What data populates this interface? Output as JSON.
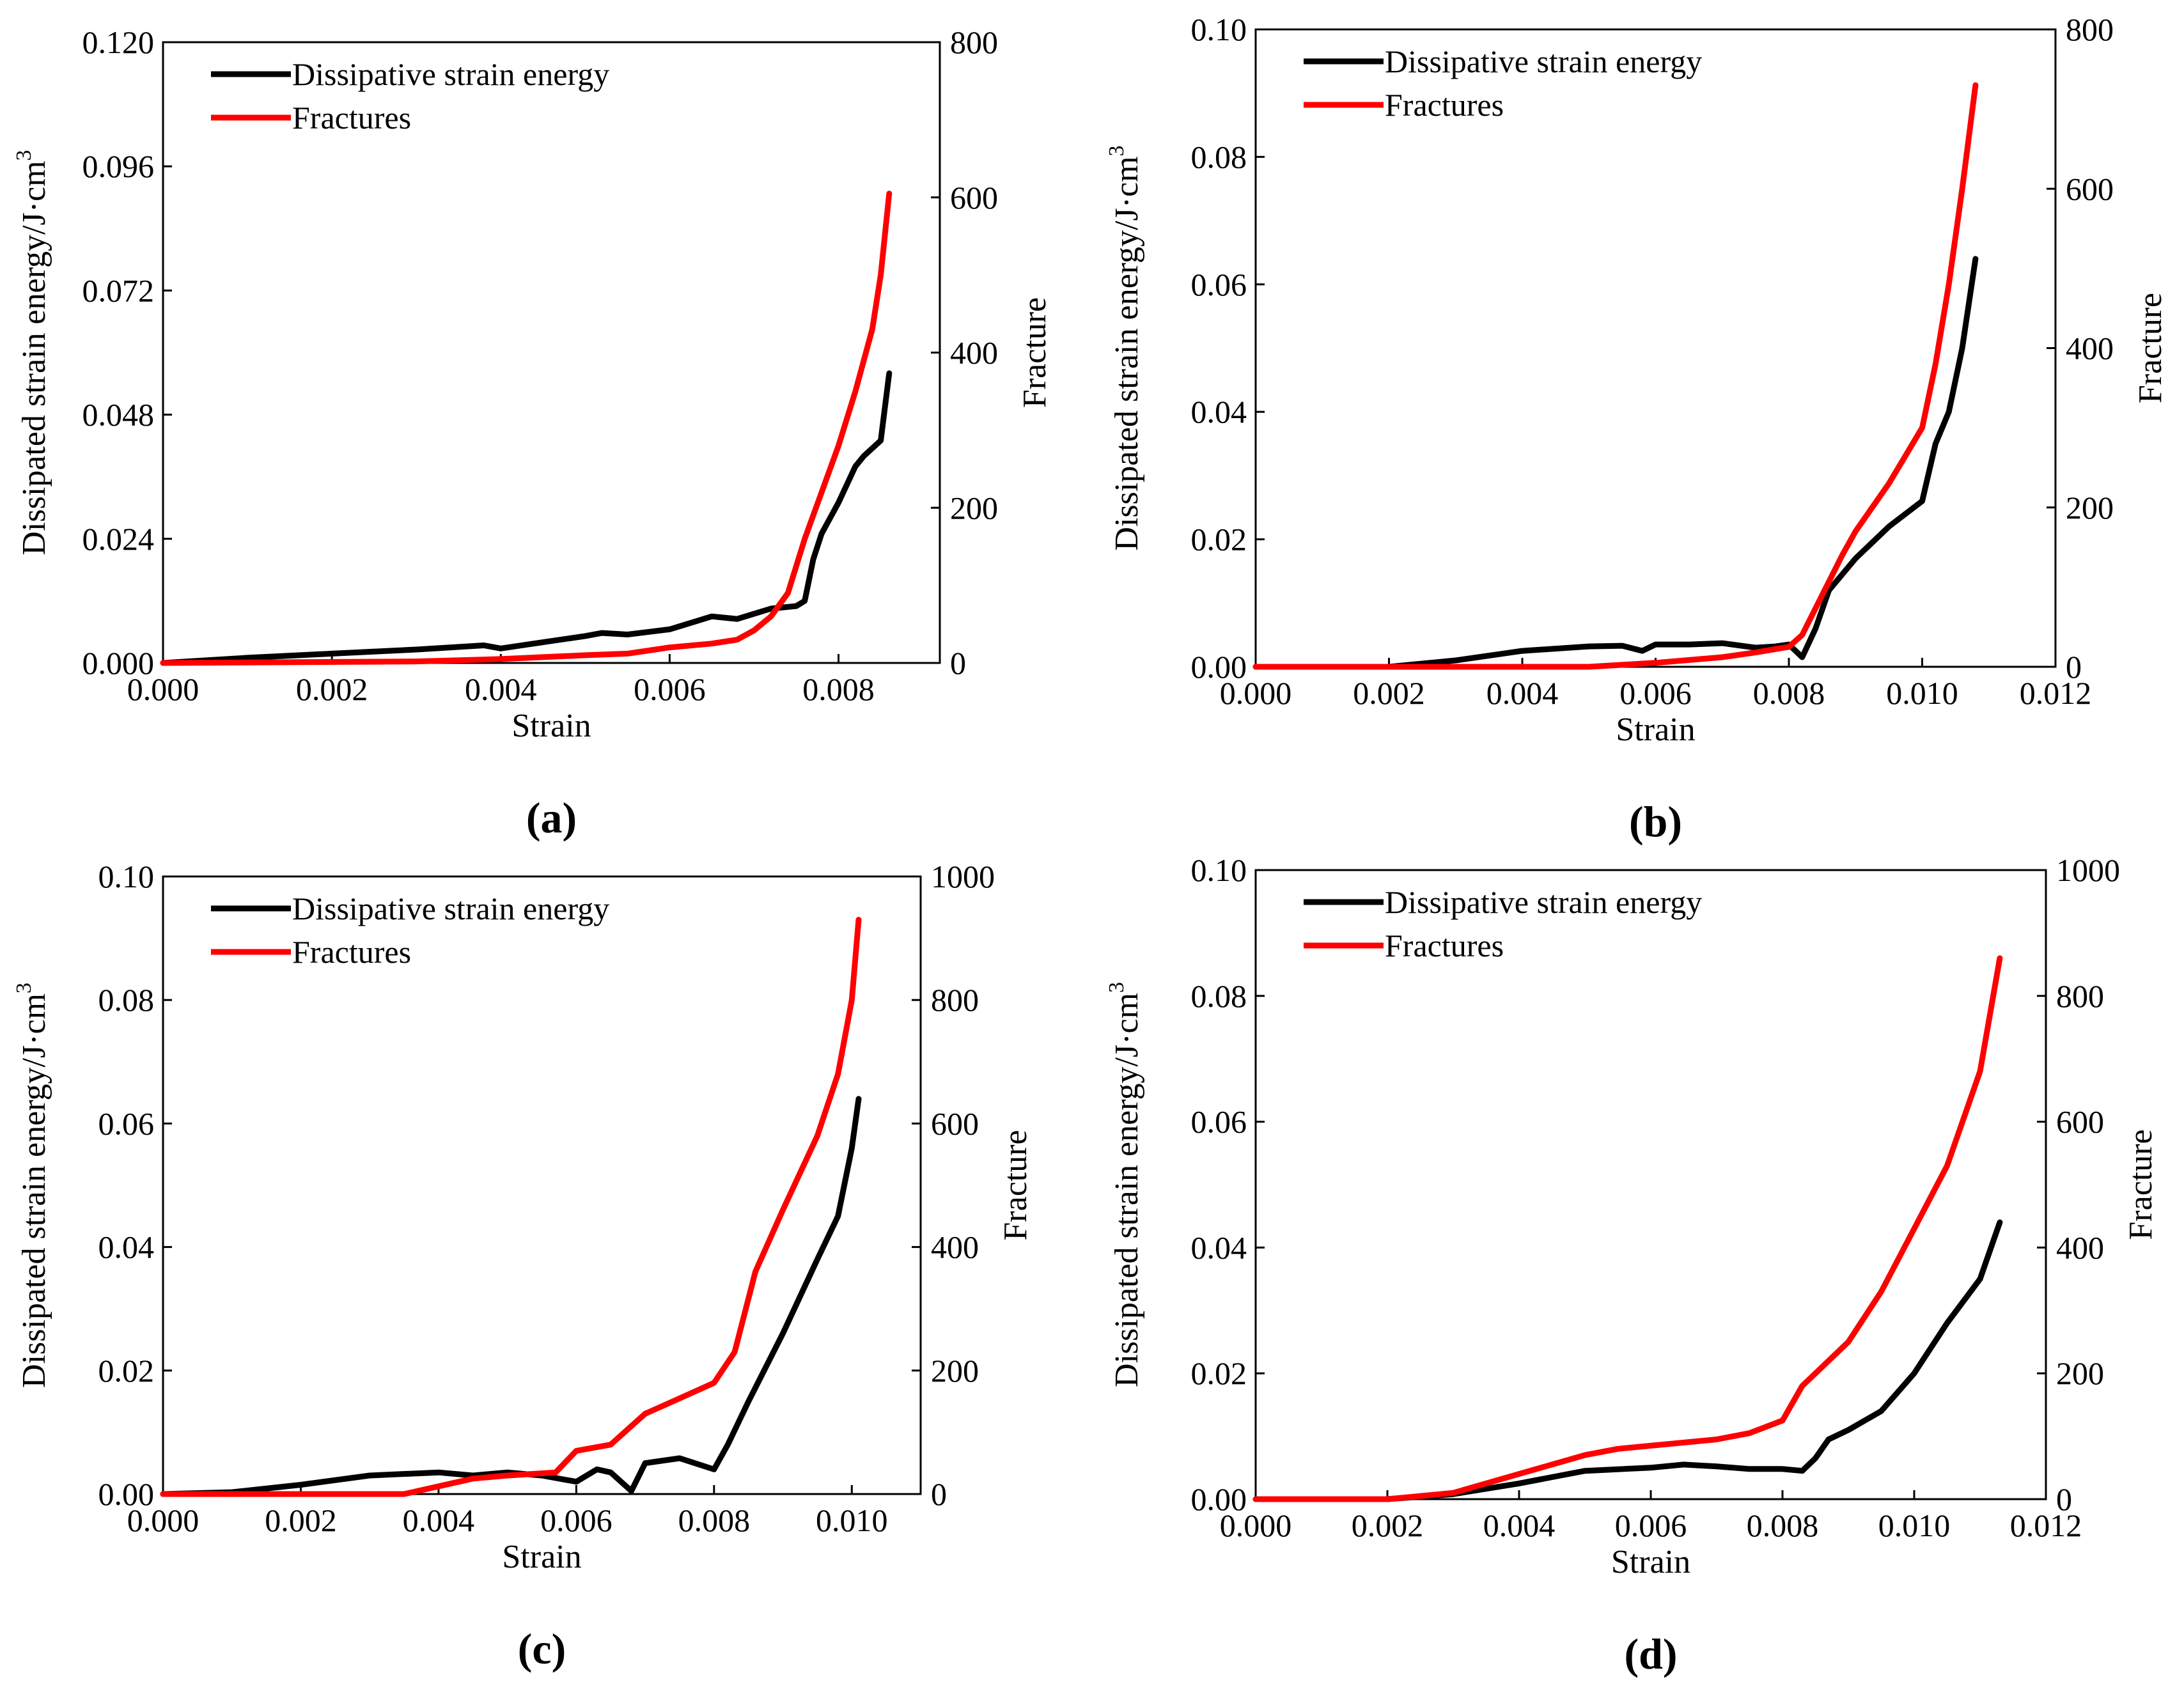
{
  "figure": {
    "panel_labels": [
      "(a)",
      "(b)",
      "(c)",
      "(d)"
    ]
  },
  "chart_data": [
    {
      "type": "line",
      "panel_label": "(a)",
      "xlabel": "Strain",
      "ylabel": "Dissipated strain energy/J·cm",
      "ylabel_superscript": "3",
      "y2label": "Fracture",
      "xlim": [
        0,
        0.0092
      ],
      "ylim": [
        0,
        0.12
      ],
      "y2lim": [
        0,
        800
      ],
      "xticks": [
        "0.000",
        "0.002",
        "0.004",
        "0.006",
        "0.008"
      ],
      "xtick_values": [
        0,
        0.002,
        0.004,
        0.006,
        0.008
      ],
      "yticks": [
        "0.000",
        "0.024",
        "0.048",
        "0.072",
        "0.096",
        "0.120"
      ],
      "ytick_values": [
        0,
        0.024,
        0.048,
        0.072,
        0.096,
        0.12
      ],
      "y2ticks": [
        "0",
        "200",
        "400",
        "600",
        "800"
      ],
      "y2tick_values": [
        0,
        200,
        400,
        600,
        800
      ],
      "legend": [
        "Dissipative strain energy",
        "Fractures"
      ],
      "series": [
        {
          "name": "Dissipative strain energy",
          "axis": "left",
          "color": "#000000",
          "x": [
            0,
            0.001,
            0.002,
            0.003,
            0.0038,
            0.004,
            0.0045,
            0.005,
            0.0052,
            0.0055,
            0.006,
            0.0065,
            0.0068,
            0.007,
            0.0072,
            0.0075,
            0.0076,
            0.0077,
            0.0078,
            0.008,
            0.0082,
            0.0083,
            0.0085,
            0.0086
          ],
          "values": [
            0,
            0.001,
            0.0018,
            0.0026,
            0.0034,
            0.0028,
            0.004,
            0.0052,
            0.0058,
            0.0055,
            0.0065,
            0.009,
            0.0085,
            0.0095,
            0.0105,
            0.011,
            0.012,
            0.02,
            0.025,
            0.031,
            0.038,
            0.04,
            0.043,
            0.056
          ]
        },
        {
          "name": "Fractures",
          "axis": "right",
          "color": "#ff0000",
          "x": [
            0,
            0.003,
            0.004,
            0.005,
            0.0055,
            0.006,
            0.0065,
            0.0068,
            0.007,
            0.0072,
            0.0074,
            0.0076,
            0.0078,
            0.008,
            0.0082,
            0.0084,
            0.0085,
            0.0086
          ],
          "values": [
            0,
            2,
            5,
            10,
            12,
            20,
            25,
            30,
            42,
            60,
            90,
            160,
            220,
            280,
            350,
            430,
            500,
            605
          ]
        }
      ]
    },
    {
      "type": "line",
      "panel_label": "(b)",
      "xlabel": "Strain",
      "ylabel": "Dissipated strain energy/J·cm",
      "ylabel_superscript": "3",
      "y2label": "Fracture",
      "xlim": [
        0,
        0.012
      ],
      "ylim": [
        0,
        0.1
      ],
      "y2lim": [
        0,
        800
      ],
      "xticks": [
        "0.000",
        "0.002",
        "0.004",
        "0.006",
        "0.008",
        "0.010",
        "0.012"
      ],
      "xtick_values": [
        0,
        0.002,
        0.004,
        0.006,
        0.008,
        0.01,
        0.012
      ],
      "yticks": [
        "0.00",
        "0.02",
        "0.04",
        "0.06",
        "0.08",
        "0.10"
      ],
      "ytick_values": [
        0,
        0.02,
        0.04,
        0.06,
        0.08,
        0.1
      ],
      "y2ticks": [
        "0",
        "200",
        "400",
        "600",
        "800"
      ],
      "y2tick_values": [
        0,
        200,
        400,
        600,
        800
      ],
      "legend": [
        "Dissipative strain energy",
        "Fractures"
      ],
      "series": [
        {
          "name": "Dissipative strain energy",
          "axis": "left",
          "color": "#000000",
          "x": [
            0,
            0.002,
            0.003,
            0.004,
            0.005,
            0.0055,
            0.0058,
            0.006,
            0.0065,
            0.007,
            0.0075,
            0.0078,
            0.008,
            0.0082,
            0.0084,
            0.0086,
            0.009,
            0.0095,
            0.01,
            0.0102,
            0.0104,
            0.0106,
            0.0108
          ],
          "values": [
            0,
            0,
            0.001,
            0.0025,
            0.0032,
            0.0033,
            0.0025,
            0.0035,
            0.0035,
            0.0037,
            0.003,
            0.0032,
            0.0035,
            0.0015,
            0.006,
            0.012,
            0.017,
            0.022,
            0.026,
            0.035,
            0.04,
            0.05,
            0.064
          ]
        },
        {
          "name": "Fractures",
          "axis": "right",
          "color": "#ff0000",
          "x": [
            0,
            0.005,
            0.006,
            0.007,
            0.0075,
            0.008,
            0.0082,
            0.0085,
            0.0088,
            0.009,
            0.0095,
            0.01,
            0.0102,
            0.0104,
            0.0106,
            0.0108
          ],
          "values": [
            0,
            0,
            5,
            12,
            18,
            25,
            40,
            90,
            140,
            170,
            230,
            300,
            380,
            480,
            600,
            730
          ]
        }
      ]
    },
    {
      "type": "line",
      "panel_label": "(c)",
      "xlabel": "Strain",
      "ylabel": "Dissipated strain energy/J·cm",
      "ylabel_superscript": "3",
      "y2label": "Fracture",
      "xlim": [
        0,
        0.011
      ],
      "ylim": [
        0,
        0.1
      ],
      "y2lim": [
        0,
        1000
      ],
      "xticks": [
        "0.000",
        "0.002",
        "0.004",
        "0.006",
        "0.008",
        "0.010"
      ],
      "xtick_values": [
        0,
        0.002,
        0.004,
        0.006,
        0.008,
        0.01
      ],
      "yticks": [
        "0.00",
        "0.02",
        "0.04",
        "0.06",
        "0.08",
        "0.10"
      ],
      "ytick_values": [
        0,
        0.02,
        0.04,
        0.06,
        0.08,
        0.1
      ],
      "y2ticks": [
        "0",
        "200",
        "400",
        "600",
        "800",
        "1000"
      ],
      "y2tick_values": [
        0,
        200,
        400,
        600,
        800,
        1000
      ],
      "legend": [
        "Dissipative strain energy",
        "Fractures"
      ],
      "series": [
        {
          "name": "Dissipative strain energy",
          "axis": "left",
          "color": "#000000",
          "x": [
            0,
            0.001,
            0.002,
            0.003,
            0.004,
            0.0045,
            0.005,
            0.0055,
            0.006,
            0.0063,
            0.0065,
            0.0068,
            0.007,
            0.0075,
            0.008,
            0.0082,
            0.0085,
            0.009,
            0.0095,
            0.0098,
            0.01,
            0.0101
          ],
          "values": [
            0,
            0.0003,
            0.0015,
            0.003,
            0.0035,
            0.003,
            0.0035,
            0.003,
            0.002,
            0.004,
            0.0035,
            0.0005,
            0.005,
            0.0058,
            0.004,
            0.008,
            0.015,
            0.026,
            0.038,
            0.045,
            0.056,
            0.064
          ]
        },
        {
          "name": "Fractures",
          "axis": "right",
          "color": "#ff0000",
          "x": [
            0,
            0.0035,
            0.0045,
            0.005,
            0.0057,
            0.006,
            0.0065,
            0.0068,
            0.007,
            0.0075,
            0.008,
            0.0083,
            0.0086,
            0.009,
            0.0095,
            0.0098,
            0.01,
            0.0101
          ],
          "values": [
            0,
            0,
            25,
            30,
            35,
            70,
            80,
            110,
            130,
            155,
            180,
            230,
            360,
            460,
            580,
            680,
            800,
            930
          ]
        }
      ]
    },
    {
      "type": "line",
      "panel_label": "(d)",
      "xlabel": "Strain",
      "ylabel": "Dissipated strain energy/J·cm",
      "ylabel_superscript": "3",
      "y2label": "Fracture",
      "xlim": [
        0,
        0.012
      ],
      "ylim": [
        0,
        0.1
      ],
      "y2lim": [
        0,
        1000
      ],
      "xticks": [
        "0.000",
        "0.002",
        "0.004",
        "0.006",
        "0.008",
        "0.010",
        "0.012"
      ],
      "xtick_values": [
        0,
        0.002,
        0.004,
        0.006,
        0.008,
        0.01,
        0.012
      ],
      "yticks": [
        "0.00",
        "0.02",
        "0.04",
        "0.06",
        "0.08",
        "0.10"
      ],
      "ytick_values": [
        0,
        0.02,
        0.04,
        0.06,
        0.08,
        0.1
      ],
      "y2ticks": [
        "0",
        "200",
        "400",
        "600",
        "800",
        "1000"
      ],
      "y2tick_values": [
        0,
        200,
        400,
        600,
        800,
        1000
      ],
      "legend": [
        "Dissipative strain energy",
        "Fractures"
      ],
      "series": [
        {
          "name": "Dissipative strain energy",
          "axis": "left",
          "color": "#000000",
          "x": [
            0,
            0.002,
            0.003,
            0.004,
            0.005,
            0.006,
            0.0065,
            0.007,
            0.0075,
            0.008,
            0.0083,
            0.0085,
            0.0087,
            0.009,
            0.0095,
            0.01,
            0.0105,
            0.011,
            0.0113
          ],
          "values": [
            0,
            0,
            0.0008,
            0.0025,
            0.0045,
            0.005,
            0.0055,
            0.0052,
            0.0048,
            0.0048,
            0.0045,
            0.0065,
            0.0095,
            0.011,
            0.014,
            0.02,
            0.028,
            0.035,
            0.044
          ]
        },
        {
          "name": "Fractures",
          "axis": "right",
          "color": "#ff0000",
          "x": [
            0,
            0.002,
            0.003,
            0.004,
            0.005,
            0.0055,
            0.006,
            0.007,
            0.0075,
            0.008,
            0.0083,
            0.0085,
            0.009,
            0.0095,
            0.01,
            0.0105,
            0.011,
            0.0113
          ],
          "values": [
            0,
            0,
            10,
            40,
            70,
            80,
            85,
            95,
            105,
            125,
            180,
            200,
            250,
            330,
            430,
            530,
            680,
            860
          ]
        }
      ]
    }
  ]
}
